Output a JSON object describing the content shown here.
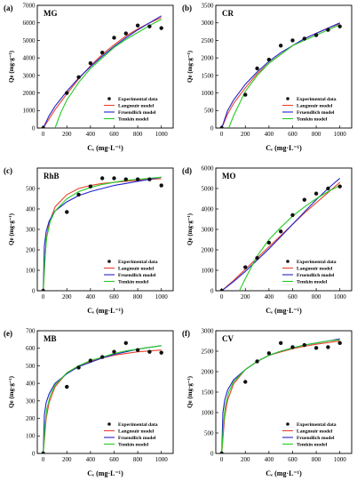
{
  "figure": {
    "legend_labels": [
      "Experimental data",
      "Langmuir model",
      "Fruendlich model",
      "Temkin model"
    ],
    "xlabel": "Cₑ (mg·L⁻¹)",
    "ylabel": "Qe (mg·g⁻¹)",
    "colors": {
      "langmuir": "#e8432f",
      "freundlich": "#2222cc",
      "temkin": "#22cc22",
      "points": "#111111"
    }
  },
  "chart_data": [
    {
      "label": "(a)",
      "title": "MG",
      "type": "scatter",
      "xlim": [
        -50,
        1100
      ],
      "ylim": [
        0,
        7000
      ],
      "xticks": [
        0,
        200,
        400,
        600,
        800,
        1000
      ],
      "yticks": [
        0,
        1000,
        2000,
        3000,
        4000,
        5000,
        6000,
        7000
      ],
      "points": [
        [
          0,
          0
        ],
        [
          200,
          2000
        ],
        [
          300,
          2900
        ],
        [
          400,
          3700
        ],
        [
          500,
          4300
        ],
        [
          600,
          5150
        ],
        [
          700,
          5400
        ],
        [
          800,
          5850
        ],
        [
          900,
          5800
        ],
        [
          1000,
          5700
        ]
      ],
      "models": {
        "langmuir": [
          [
            0,
            0
          ],
          [
            100,
            1050
          ],
          [
            200,
            1950
          ],
          [
            300,
            2800
          ],
          [
            400,
            3550
          ],
          [
            500,
            4200
          ],
          [
            600,
            4750
          ],
          [
            700,
            5250
          ],
          [
            800,
            5650
          ],
          [
            900,
            6000
          ],
          [
            1000,
            6300
          ]
        ],
        "freundlich": [
          [
            0,
            0
          ],
          [
            50,
            700
          ],
          [
            100,
            1250
          ],
          [
            200,
            2100
          ],
          [
            300,
            2850
          ],
          [
            400,
            3500
          ],
          [
            500,
            4100
          ],
          [
            600,
            4650
          ],
          [
            700,
            5150
          ],
          [
            800,
            5600
          ],
          [
            900,
            6000
          ],
          [
            1000,
            6400
          ]
        ],
        "temkin": [
          [
            100,
            0
          ],
          [
            150,
            900
          ],
          [
            200,
            1600
          ],
          [
            300,
            2600
          ],
          [
            400,
            3400
          ],
          [
            500,
            4000
          ],
          [
            600,
            4600
          ],
          [
            700,
            5050
          ],
          [
            800,
            5450
          ],
          [
            900,
            5850
          ],
          [
            1000,
            6200
          ]
        ]
      }
    },
    {
      "label": "(b)",
      "title": "CR",
      "type": "scatter",
      "xlim": [
        -50,
        1100
      ],
      "ylim": [
        0,
        3500
      ],
      "xticks": [
        0,
        200,
        400,
        600,
        800,
        1000
      ],
      "yticks": [
        0,
        500,
        1000,
        1500,
        2000,
        2500,
        3000,
        3500
      ],
      "points": [
        [
          0,
          0
        ],
        [
          200,
          950
        ],
        [
          300,
          1700
        ],
        [
          400,
          1950
        ],
        [
          500,
          2350
        ],
        [
          600,
          2500
        ],
        [
          700,
          2550
        ],
        [
          800,
          2650
        ],
        [
          900,
          2800
        ],
        [
          1000,
          2900
        ]
      ],
      "models": {
        "langmuir": [
          [
            0,
            0
          ],
          [
            50,
            400
          ],
          [
            100,
            700
          ],
          [
            200,
            1150
          ],
          [
            300,
            1550
          ],
          [
            400,
            1850
          ],
          [
            500,
            2100
          ],
          [
            600,
            2350
          ],
          [
            700,
            2550
          ],
          [
            800,
            2700
          ],
          [
            900,
            2850
          ],
          [
            1000,
            2980
          ]
        ],
        "freundlich": [
          [
            0,
            0
          ],
          [
            50,
            500
          ],
          [
            100,
            800
          ],
          [
            200,
            1250
          ],
          [
            300,
            1600
          ],
          [
            400,
            1900
          ],
          [
            500,
            2150
          ],
          [
            600,
            2350
          ],
          [
            700,
            2550
          ],
          [
            800,
            2700
          ],
          [
            900,
            2850
          ],
          [
            1000,
            3000
          ]
        ],
        "temkin": [
          [
            60,
            0
          ],
          [
            100,
            350
          ],
          [
            200,
            1050
          ],
          [
            300,
            1500
          ],
          [
            400,
            1850
          ],
          [
            500,
            2100
          ],
          [
            600,
            2350
          ],
          [
            700,
            2500
          ],
          [
            800,
            2650
          ],
          [
            900,
            2800
          ],
          [
            1000,
            2950
          ]
        ]
      }
    },
    {
      "label": "(c)",
      "title": "RhB",
      "type": "scatter",
      "xlim": [
        -50,
        1100
      ],
      "ylim": [
        0,
        600
      ],
      "xticks": [
        0,
        200,
        400,
        600,
        800,
        1000
      ],
      "yticks": [
        0,
        100,
        200,
        300,
        400,
        500
      ],
      "points": [
        [
          0,
          0
        ],
        [
          200,
          385
        ],
        [
          300,
          470
        ],
        [
          400,
          510
        ],
        [
          500,
          550
        ],
        [
          600,
          550
        ],
        [
          700,
          545
        ],
        [
          800,
          545
        ],
        [
          900,
          545
        ],
        [
          1000,
          515
        ]
      ],
      "models": {
        "langmuir": [
          [
            0,
            0
          ],
          [
            25,
            250
          ],
          [
            50,
            330
          ],
          [
            100,
            410
          ],
          [
            200,
            470
          ],
          [
            300,
            500
          ],
          [
            400,
            515
          ],
          [
            500,
            525
          ],
          [
            600,
            530
          ],
          [
            700,
            535
          ],
          [
            800,
            540
          ],
          [
            900,
            545
          ],
          [
            1000,
            548
          ]
        ],
        "freundlich": [
          [
            0,
            0
          ],
          [
            10,
            220
          ],
          [
            25,
            290
          ],
          [
            50,
            340
          ],
          [
            100,
            390
          ],
          [
            200,
            435
          ],
          [
            300,
            465
          ],
          [
            400,
            485
          ],
          [
            500,
            500
          ],
          [
            600,
            515
          ],
          [
            700,
            525
          ],
          [
            800,
            535
          ],
          [
            900,
            545
          ],
          [
            1000,
            555
          ]
        ],
        "temkin": [
          [
            0,
            0
          ],
          [
            15,
            160
          ],
          [
            30,
            260
          ],
          [
            60,
            340
          ],
          [
            100,
            390
          ],
          [
            200,
            450
          ],
          [
            300,
            485
          ],
          [
            400,
            505
          ],
          [
            500,
            520
          ],
          [
            600,
            530
          ],
          [
            700,
            540
          ],
          [
            800,
            545
          ],
          [
            900,
            550
          ],
          [
            1000,
            555
          ]
        ]
      }
    },
    {
      "label": "(d)",
      "title": "MO",
      "type": "scatter",
      "xlim": [
        -50,
        1100
      ],
      "ylim": [
        0,
        6000
      ],
      "xticks": [
        0,
        200,
        400,
        600,
        800,
        1000
      ],
      "yticks": [
        0,
        1000,
        2000,
        3000,
        4000,
        5000,
        6000
      ],
      "points": [
        [
          0,
          0
        ],
        [
          200,
          1150
        ],
        [
          300,
          1600
        ],
        [
          400,
          2350
        ],
        [
          500,
          2900
        ],
        [
          600,
          3700
        ],
        [
          700,
          4450
        ],
        [
          800,
          4750
        ],
        [
          900,
          5000
        ],
        [
          1000,
          5100
        ]
      ],
      "models": {
        "langmuir": [
          [
            0,
            0
          ],
          [
            100,
            500
          ],
          [
            200,
            1050
          ],
          [
            300,
            1600
          ],
          [
            400,
            2150
          ],
          [
            500,
            2700
          ],
          [
            600,
            3250
          ],
          [
            700,
            3800
          ],
          [
            800,
            4300
          ],
          [
            900,
            4800
          ],
          [
            1000,
            5300
          ]
        ],
        "freundlich": [
          [
            0,
            0
          ],
          [
            100,
            450
          ],
          [
            200,
            950
          ],
          [
            300,
            1500
          ],
          [
            400,
            2050
          ],
          [
            500,
            2650
          ],
          [
            600,
            3250
          ],
          [
            700,
            3850
          ],
          [
            800,
            4450
          ],
          [
            900,
            5000
          ],
          [
            1000,
            5500
          ]
        ],
        "temkin": [
          [
            150,
            0
          ],
          [
            200,
            600
          ],
          [
            300,
            1700
          ],
          [
            400,
            2500
          ],
          [
            500,
            3100
          ],
          [
            600,
            3650
          ],
          [
            700,
            4100
          ],
          [
            800,
            4500
          ],
          [
            900,
            4850
          ],
          [
            1000,
            5150
          ]
        ]
      }
    },
    {
      "label": "(e)",
      "title": "MB",
      "type": "scatter",
      "xlim": [
        -50,
        1100
      ],
      "ylim": [
        0,
        700
      ],
      "xticks": [
        0,
        200,
        400,
        600,
        800,
        1000
      ],
      "yticks": [
        0,
        100,
        200,
        300,
        400,
        500,
        600,
        700
      ],
      "points": [
        [
          0,
          0
        ],
        [
          200,
          380
        ],
        [
          300,
          490
        ],
        [
          400,
          530
        ],
        [
          500,
          550
        ],
        [
          600,
          580
        ],
        [
          700,
          630
        ],
        [
          800,
          590
        ],
        [
          900,
          580
        ],
        [
          1000,
          575
        ]
      ],
      "models": {
        "langmuir": [
          [
            0,
            0
          ],
          [
            25,
            200
          ],
          [
            50,
            290
          ],
          [
            100,
            380
          ],
          [
            200,
            460
          ],
          [
            300,
            500
          ],
          [
            400,
            525
          ],
          [
            500,
            545
          ],
          [
            600,
            560
          ],
          [
            700,
            570
          ],
          [
            800,
            580
          ],
          [
            900,
            585
          ],
          [
            1000,
            590
          ]
        ],
        "freundlich": [
          [
            0,
            0
          ],
          [
            10,
            220
          ],
          [
            25,
            290
          ],
          [
            50,
            340
          ],
          [
            100,
            400
          ],
          [
            200,
            455
          ],
          [
            300,
            495
          ],
          [
            400,
            520
          ],
          [
            500,
            545
          ],
          [
            600,
            565
          ],
          [
            700,
            580
          ],
          [
            800,
            595
          ],
          [
            900,
            605
          ],
          [
            1000,
            615
          ]
        ],
        "temkin": [
          [
            0,
            0
          ],
          [
            15,
            150
          ],
          [
            30,
            250
          ],
          [
            60,
            330
          ],
          [
            100,
            390
          ],
          [
            200,
            460
          ],
          [
            300,
            500
          ],
          [
            400,
            530
          ],
          [
            500,
            550
          ],
          [
            600,
            570
          ],
          [
            700,
            585
          ],
          [
            800,
            595
          ],
          [
            900,
            605
          ],
          [
            1000,
            615
          ]
        ]
      }
    },
    {
      "label": "(f)",
      "title": "CV",
      "type": "scatter",
      "xlim": [
        -50,
        1100
      ],
      "ylim": [
        0,
        3000
      ],
      "xticks": [
        0,
        200,
        400,
        600,
        800,
        1000
      ],
      "yticks": [
        0,
        500,
        1000,
        1500,
        2000,
        2500,
        3000
      ],
      "points": [
        [
          0,
          0
        ],
        [
          200,
          1750
        ],
        [
          300,
          2250
        ],
        [
          400,
          2450
        ],
        [
          500,
          2700
        ],
        [
          600,
          2600
        ],
        [
          700,
          2650
        ],
        [
          800,
          2580
        ],
        [
          900,
          2600
        ],
        [
          1000,
          2700
        ]
      ],
      "models": {
        "langmuir": [
          [
            0,
            0
          ],
          [
            25,
            900
          ],
          [
            50,
            1300
          ],
          [
            100,
            1700
          ],
          [
            200,
            2050
          ],
          [
            300,
            2250
          ],
          [
            400,
            2400
          ],
          [
            500,
            2480
          ],
          [
            600,
            2560
          ],
          [
            700,
            2620
          ],
          [
            800,
            2670
          ],
          [
            900,
            2710
          ],
          [
            1000,
            2750
          ]
        ],
        "freundlich": [
          [
            0,
            0
          ],
          [
            10,
            1000
          ],
          [
            25,
            1300
          ],
          [
            50,
            1550
          ],
          [
            100,
            1800
          ],
          [
            200,
            2050
          ],
          [
            300,
            2250
          ],
          [
            400,
            2400
          ],
          [
            500,
            2500
          ],
          [
            600,
            2580
          ],
          [
            700,
            2650
          ],
          [
            800,
            2700
          ],
          [
            900,
            2750
          ],
          [
            1000,
            2800
          ]
        ],
        "temkin": [
          [
            0,
            0
          ],
          [
            15,
            700
          ],
          [
            30,
            1150
          ],
          [
            60,
            1500
          ],
          [
            100,
            1750
          ],
          [
            200,
            2050
          ],
          [
            300,
            2250
          ],
          [
            400,
            2400
          ],
          [
            500,
            2500
          ],
          [
            600,
            2580
          ],
          [
            700,
            2650
          ],
          [
            800,
            2700
          ],
          [
            900,
            2750
          ],
          [
            1000,
            2780
          ]
        ]
      }
    }
  ]
}
